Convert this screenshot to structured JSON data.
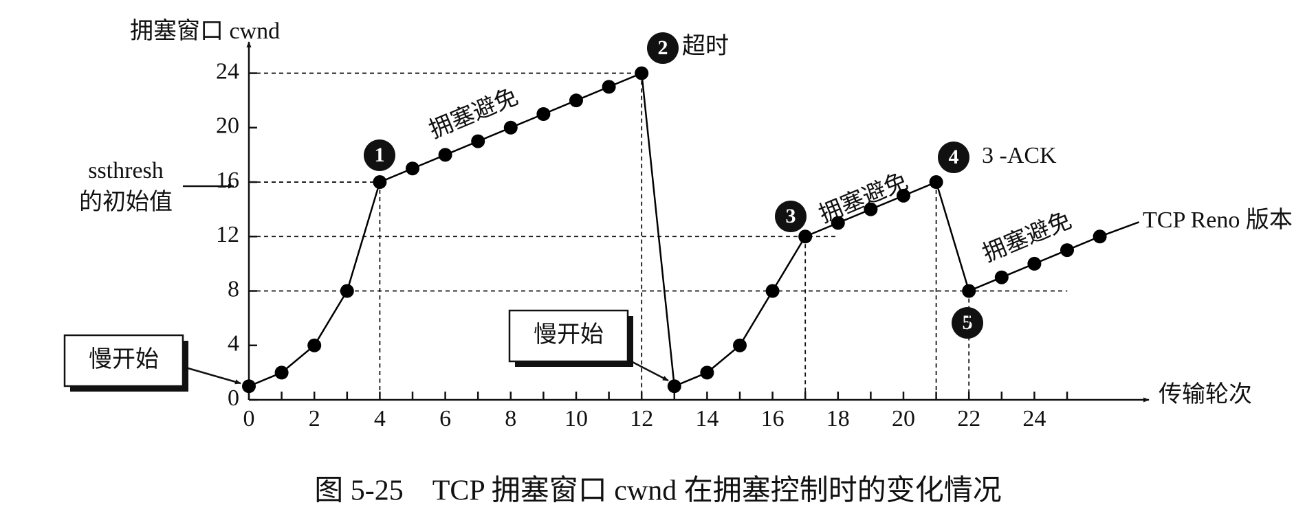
{
  "chart_data": {
    "type": "line",
    "title": "图 5-25　TCP 拥塞窗口 cwnd 在拥塞控制时的变化情况",
    "y_label": "拥塞窗口 cwnd",
    "x_label": "传输轮次",
    "x": [
      0,
      1,
      2,
      3,
      4,
      5,
      6,
      7,
      8,
      9,
      10,
      11,
      12,
      13,
      14,
      15,
      16,
      17,
      18,
      19,
      20,
      21,
      22,
      23,
      24,
      25,
      26
    ],
    "series": [
      {
        "color": "#000000",
        "values": [
          1,
          2,
          4,
          8,
          16,
          17,
          18,
          19,
          20,
          21,
          22,
          23,
          24,
          1,
          2,
          4,
          8,
          12,
          13,
          14,
          15,
          16,
          8,
          9,
          10,
          11,
          12
        ]
      }
    ],
    "xlim": [
      0,
      27.5
    ],
    "ylim": [
      0,
      26.3
    ],
    "xticks": [
      0,
      2,
      4,
      6,
      8,
      10,
      12,
      14,
      16,
      18,
      20,
      22,
      24
    ],
    "x_minor_ticks": [
      1,
      3,
      5,
      7,
      9,
      11,
      13,
      15,
      17,
      19,
      21,
      23,
      25
    ],
    "yticks": [
      0,
      4,
      8,
      12,
      16,
      20,
      24
    ],
    "grid": false,
    "annotations": [
      "慢开始",
      "慢开始",
      "拥塞避免",
      "拥塞避免",
      "拥塞避免",
      "超时",
      "3 -ACK",
      "TCP Reno 版本",
      "ssthresh",
      "的初始值"
    ],
    "markers": [
      "1",
      "2",
      "3",
      "4",
      "5"
    ]
  }
}
